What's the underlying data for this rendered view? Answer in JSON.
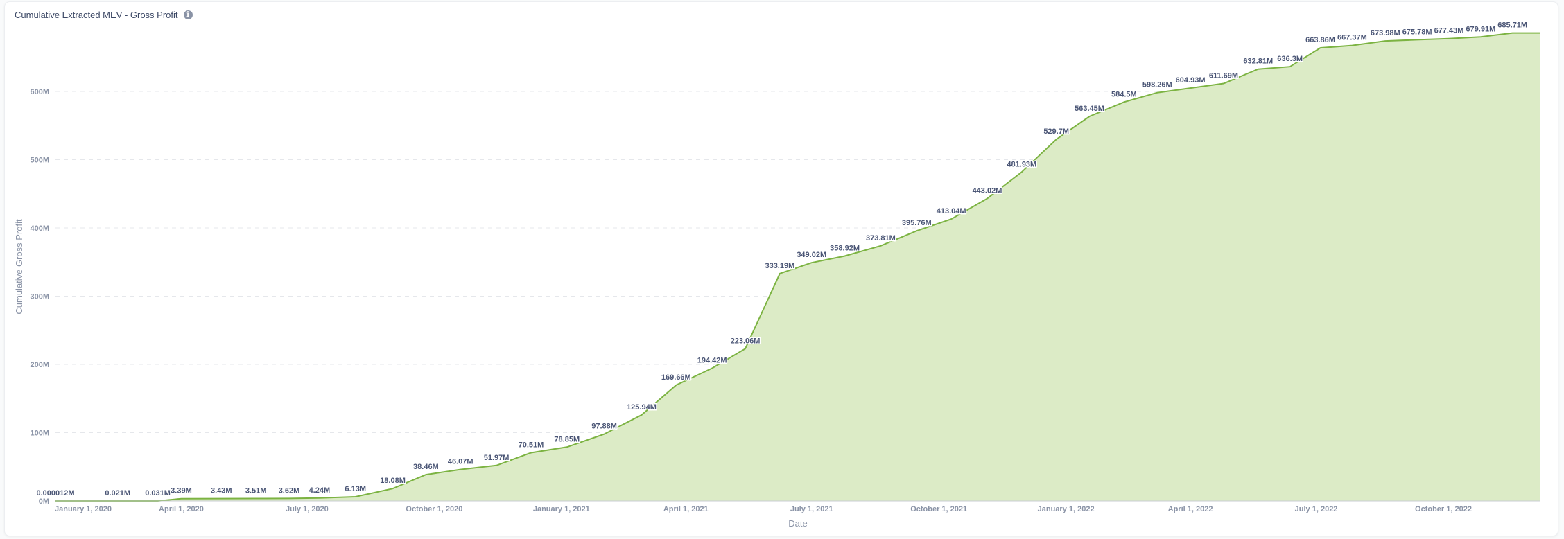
{
  "header": {
    "title": "Cumulative Extracted MEV - Gross Profit",
    "info_icon": "info-icon"
  },
  "colors": {
    "line": "#7cb342",
    "fill": "#dcebc6",
    "grid": "#e5e7eb",
    "label": "#4a5575",
    "axis_text": "#8a93a6"
  },
  "chart_data": {
    "type": "area",
    "title": "Cumulative Extracted MEV - Gross Profit",
    "xlabel": "Date",
    "ylabel": "Cumulative Gross Profit",
    "ylim": [
      0,
      700
    ],
    "y_unit": "M",
    "yticks": [
      "0M",
      "100M",
      "200M",
      "300M",
      "400M",
      "500M",
      "600M"
    ],
    "xticks": [
      "January 1, 2020",
      "April 1, 2020",
      "July 1, 2020",
      "October 1, 2020",
      "January 1, 2021",
      "April 1, 2021",
      "July 1, 2021",
      "October 1, 2021",
      "January 1, 2022",
      "April 1, 2022",
      "July 1, 2022",
      "October 1, 2022"
    ],
    "grid": true,
    "legend": "none",
    "points": [
      {
        "date": "2020-01-01",
        "value": 1.2e-05,
        "label": "0.000012M"
      },
      {
        "date": "2020-02-15",
        "value": 0.021,
        "label": "0.021M"
      },
      {
        "date": "2020-03-15",
        "value": 0.031,
        "label": "0.031M"
      },
      {
        "date": "2020-04-01",
        "value": 3.39,
        "label": "3.39M"
      },
      {
        "date": "2020-04-30",
        "value": 3.43,
        "label": "3.43M"
      },
      {
        "date": "2020-05-25",
        "value": 3.51,
        "label": "3.51M"
      },
      {
        "date": "2020-06-18",
        "value": 3.62,
        "label": "3.62M"
      },
      {
        "date": "2020-07-10",
        "value": 4.24,
        "label": "4.24M"
      },
      {
        "date": "2020-08-05",
        "value": 6.13,
        "label": "6.13M"
      },
      {
        "date": "2020-09-01",
        "value": 18.08,
        "label": "18.08M"
      },
      {
        "date": "2020-09-25",
        "value": 38.46,
        "label": "38.46M"
      },
      {
        "date": "2020-10-20",
        "value": 46.07,
        "label": "46.07M"
      },
      {
        "date": "2020-11-15",
        "value": 51.97,
        "label": "51.97M"
      },
      {
        "date": "2020-12-10",
        "value": 70.51,
        "label": "70.51M"
      },
      {
        "date": "2021-01-05",
        "value": 78.85,
        "label": "78.85M"
      },
      {
        "date": "2021-02-01",
        "value": 97.88,
        "label": "97.88M"
      },
      {
        "date": "2021-02-28",
        "value": 125.94,
        "label": "125.94M"
      },
      {
        "date": "2021-03-25",
        "value": 169.66,
        "label": "169.66M"
      },
      {
        "date": "2021-04-20",
        "value": 194.42,
        "label": "194.42M"
      },
      {
        "date": "2021-05-14",
        "value": 223.06,
        "label": "223.06M"
      },
      {
        "date": "2021-06-08",
        "value": 333.19,
        "label": "333.19M"
      },
      {
        "date": "2021-07-01",
        "value": 349.02,
        "label": "349.02M"
      },
      {
        "date": "2021-07-25",
        "value": 358.92,
        "label": "358.92M"
      },
      {
        "date": "2021-08-20",
        "value": 373.81,
        "label": "373.81M"
      },
      {
        "date": "2021-09-15",
        "value": 395.76,
        "label": "395.76M"
      },
      {
        "date": "2021-10-10",
        "value": 413.04,
        "label": "413.04M"
      },
      {
        "date": "2021-11-05",
        "value": 443.02,
        "label": "443.02M"
      },
      {
        "date": "2021-11-30",
        "value": 481.93,
        "label": "481.93M"
      },
      {
        "date": "2021-12-25",
        "value": 529.7,
        "label": "529.7M"
      },
      {
        "date": "2022-01-18",
        "value": 563.45,
        "label": "563.45M"
      },
      {
        "date": "2022-02-12",
        "value": 584.5,
        "label": "584.5M"
      },
      {
        "date": "2022-03-08",
        "value": 598.26,
        "label": "598.26M"
      },
      {
        "date": "2022-04-01",
        "value": 604.93,
        "label": "604.93M"
      },
      {
        "date": "2022-04-25",
        "value": 611.69,
        "label": "611.69M"
      },
      {
        "date": "2022-05-20",
        "value": 632.81,
        "label": "632.81M"
      },
      {
        "date": "2022-06-12",
        "value": 636.3,
        "label": "636.3M"
      },
      {
        "date": "2022-07-04",
        "value": 663.86,
        "label": "663.86M"
      },
      {
        "date": "2022-07-27",
        "value": 667.37,
        "label": "667.37M"
      },
      {
        "date": "2022-08-20",
        "value": 673.98,
        "label": "673.98M"
      },
      {
        "date": "2022-09-12",
        "value": 675.78,
        "label": "675.78M"
      },
      {
        "date": "2022-10-05",
        "value": 677.43,
        "label": "677.43M"
      },
      {
        "date": "2022-10-28",
        "value": 679.91,
        "label": "679.91M"
      },
      {
        "date": "2022-11-20",
        "value": 685.71,
        "label": "685.71M"
      }
    ]
  }
}
